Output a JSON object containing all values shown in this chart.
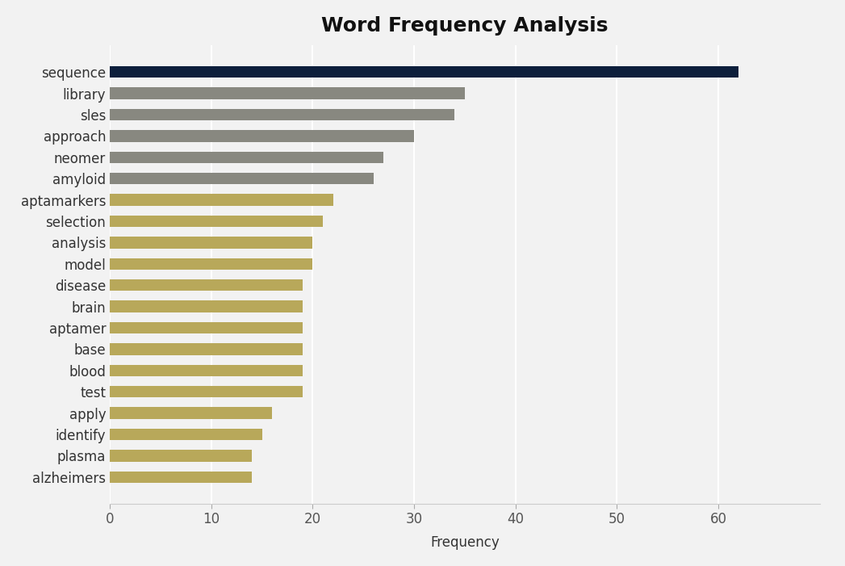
{
  "categories": [
    "alzheimers",
    "plasma",
    "identify",
    "apply",
    "test",
    "blood",
    "base",
    "aptamer",
    "brain",
    "disease",
    "model",
    "analysis",
    "selection",
    "aptamarkers",
    "amyloid",
    "neomer",
    "approach",
    "sles",
    "library",
    "sequence"
  ],
  "values": [
    14,
    14,
    15,
    16,
    19,
    19,
    19,
    19,
    19,
    19,
    20,
    20,
    21,
    22,
    26,
    27,
    30,
    34,
    35,
    62
  ],
  "bar_colors": [
    "#b8a85a",
    "#b8a85a",
    "#b8a85a",
    "#b8a85a",
    "#b8a85a",
    "#b8a85a",
    "#b8a85a",
    "#b8a85a",
    "#b8a85a",
    "#b8a85a",
    "#b8a85a",
    "#b8a85a",
    "#b8a85a",
    "#b8a85a",
    "#888880",
    "#888880",
    "#888880",
    "#888880",
    "#888880",
    "#0d1f3c"
  ],
  "title": "Word Frequency Analysis",
  "xlabel": "Frequency",
  "ylabel": "",
  "xlim": [
    0,
    70
  ],
  "xticks": [
    0,
    10,
    20,
    30,
    40,
    50,
    60
  ],
  "background_color": "#f2f2f2",
  "title_fontsize": 18,
  "label_fontsize": 12,
  "tick_fontsize": 12
}
